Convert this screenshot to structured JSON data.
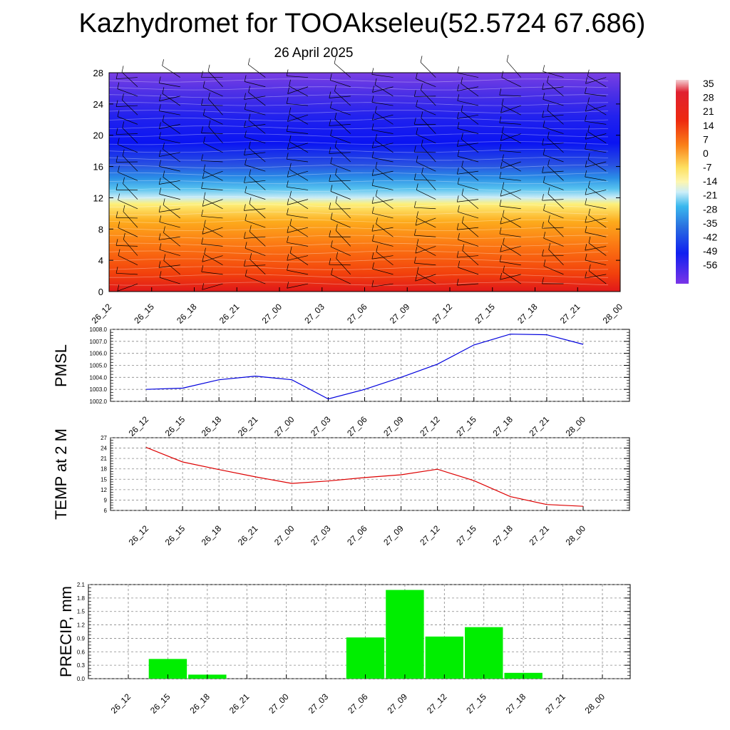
{
  "title": "Kazhydromet for TOOAkseleu(52.5724 67.686)",
  "subtitle": "26 April 2025",
  "colors": {
    "pmsl": "#0000dd",
    "temp": "#dd0000",
    "precip": "#00ee00"
  },
  "chart_data": [
    {
      "type": "heatmap",
      "name": "cross-section",
      "x": [
        "26_12",
        "26_15",
        "26_18",
        "26_21",
        "27_00",
        "27_03",
        "27_06",
        "27_09",
        "27_12",
        "27_15",
        "27_18",
        "27_21",
        "28_00"
      ],
      "y_ticks": [
        "0",
        "4",
        "8",
        "12",
        "16",
        "20",
        "24",
        "28"
      ],
      "ylim": [
        0,
        28
      ],
      "colorbar_labels": [
        "35",
        "28",
        "21",
        "14",
        "7",
        "0",
        "-7",
        "-14",
        "-21",
        "-28",
        "-35",
        "-42",
        "-49",
        "-56"
      ],
      "colorbar_range": [
        -63,
        35
      ]
    },
    {
      "type": "line",
      "ylabel": "PMSL",
      "x": [
        "26_12",
        "26_15",
        "26_18",
        "26_21",
        "27_00",
        "27_03",
        "27_06",
        "27_09",
        "27_12",
        "27_15",
        "27_18",
        "27_21",
        "28_00"
      ],
      "values": [
        1003.0,
        1003.1,
        1003.8,
        1004.1,
        1003.8,
        1002.2,
        1003.0,
        1004.0,
        1005.1,
        1006.7,
        1007.6,
        1007.55,
        1006.75
      ],
      "y_ticks": [
        "1002.0",
        "1003.0",
        "1004.0",
        "1005.0",
        "1006.0",
        "1007.0",
        "1008.0"
      ],
      "ylim": [
        1002,
        1008
      ]
    },
    {
      "type": "line",
      "ylabel": "TEMP at 2 M",
      "x": [
        "26_12",
        "26_15",
        "26_18",
        "26_21",
        "27_00",
        "27_03",
        "27_06",
        "27_09",
        "27_12",
        "27_15",
        "27_18",
        "27_21",
        "28_00"
      ],
      "values": [
        24.2,
        20.0,
        17.8,
        15.7,
        13.8,
        14.5,
        15.5,
        16.3,
        17.9,
        14.6,
        10.0,
        7.7,
        7.2
      ],
      "y_ticks": [
        "6",
        "9",
        "12",
        "15",
        "18",
        "21",
        "24",
        "27"
      ],
      "ylim": [
        6,
        27
      ]
    },
    {
      "type": "bar",
      "ylabel": "PRECIP, mm",
      "x": [
        "26_12",
        "26_15",
        "26_18",
        "26_21",
        "27_00",
        "27_03",
        "27_06",
        "27_09",
        "27_12",
        "27_15",
        "27_18",
        "27_21",
        "28_00"
      ],
      "values": [
        0.0,
        0.44,
        0.09,
        0.0,
        0.0,
        0.0,
        0.92,
        1.98,
        0.94,
        1.15,
        0.13,
        0.0,
        0.0
      ],
      "y_ticks": [
        "0.0",
        "0.3",
        "0.6",
        "0.9",
        "1.2",
        "1.5",
        "1.8",
        "2.1"
      ],
      "ylim": [
        0,
        2.1
      ]
    }
  ]
}
